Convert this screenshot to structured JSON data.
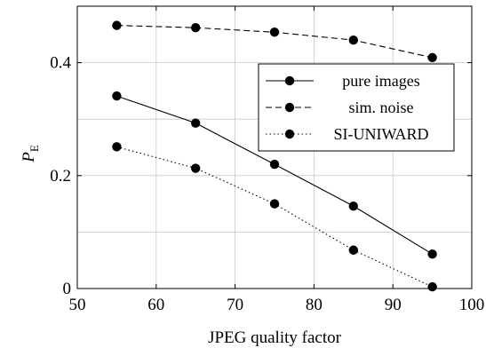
{
  "chart_data": {
    "type": "line",
    "xlabel": "JPEG quality factor",
    "ylabel_main": "P",
    "ylabel_sub": "E",
    "xlim": [
      50,
      100
    ],
    "ylim": [
      0,
      0.5
    ],
    "xticks": [
      50,
      60,
      70,
      80,
      90,
      100
    ],
    "yticks": [
      0,
      0.2,
      0.4
    ],
    "ytick_labels": [
      "0",
      "0.2",
      "0.4"
    ],
    "grid": true,
    "legend_position": "right",
    "x": [
      55,
      65,
      75,
      85,
      95
    ],
    "series": [
      {
        "name": "pure images",
        "style": "solid",
        "values": [
          0.341,
          0.293,
          0.22,
          0.146,
          0.061
        ]
      },
      {
        "name": "sim. noise",
        "style": "dashed",
        "values": [
          0.466,
          0.462,
          0.454,
          0.44,
          0.409
        ]
      },
      {
        "name": "SI-UNIWARD",
        "style": "dotted",
        "values": [
          0.251,
          0.213,
          0.15,
          0.068,
          0.003
        ]
      }
    ]
  }
}
